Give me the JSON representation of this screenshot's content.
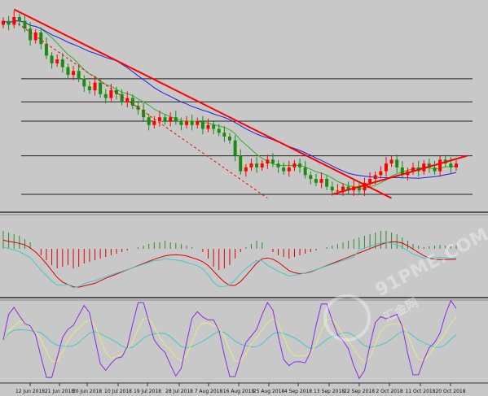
{
  "chart_data": {
    "type": "candlestick",
    "title": "",
    "x_tick_labels": [
      "12 Jun 2018",
      "21 Jun 2018",
      "30 Jun 2018",
      "10 Jul 2018",
      "19 Jul 2018",
      "28 Jul 2018",
      "7 Aug 2018",
      "16 Aug 2018",
      "25 Aug 2018",
      "4 Sep 2018",
      "13 Sep 2018",
      "22 Sep 2018",
      "2 Oct 2018",
      "11 Oct 2018",
      "20 Oct 2018"
    ],
    "price_panel": {
      "closes": [
        75,
        74,
        76,
        75,
        73,
        70,
        72,
        69,
        66,
        64,
        65,
        63,
        61,
        62,
        60,
        58,
        57,
        59,
        56,
        55,
        57,
        56,
        54,
        55,
        53,
        52,
        50,
        48,
        49,
        50,
        49,
        50,
        49,
        48,
        49,
        48,
        49,
        47,
        48,
        47,
        46,
        45,
        44,
        40,
        36,
        37,
        38,
        37,
        38,
        39,
        38,
        37,
        36,
        37,
        38,
        37,
        35,
        34,
        33,
        34,
        32,
        31,
        31,
        32,
        31,
        32,
        31,
        33,
        34,
        35,
        36,
        38,
        39,
        37,
        35,
        36,
        37,
        36,
        38,
        37,
        36,
        39,
        38,
        37,
        38
      ],
      "trendlines": [
        {
          "from": [
            2,
            78
          ],
          "to": [
            72,
            29
          ],
          "color": "#ff0000",
          "style": "solid"
        },
        {
          "from": [
            2,
            75
          ],
          "to": [
            49,
            29
          ],
          "color": "#ff0000",
          "style": "dashed"
        },
        {
          "from": [
            61,
            30
          ],
          "to": [
            86,
            40
          ],
          "color": "#ff0000",
          "style": "solid"
        }
      ],
      "horizontal_levels": [
        60,
        54,
        49,
        40,
        30
      ],
      "moving_averages": [
        {
          "color": "#e8e87a",
          "period": "fast"
        },
        {
          "color": "#2db52d",
          "period": "medium"
        },
        {
          "color": "#2222dd",
          "period": "slow"
        }
      ]
    },
    "macd_panel": {
      "histogram": [
        0.55,
        0.5,
        0.45,
        0.4,
        0.3,
        0.2,
        0.0,
        -0.2,
        -0.35,
        -0.5,
        -0.6,
        -0.55,
        -0.5,
        -0.6,
        -0.55,
        -0.45,
        -0.4,
        -0.35,
        -0.3,
        -0.25,
        -0.2,
        -0.15,
        -0.1,
        -0.05,
        0.0,
        0.05,
        0.1,
        0.15,
        0.2,
        0.2,
        0.25,
        0.2,
        0.18,
        0.15,
        0.1,
        0.05,
        0.0,
        -0.1,
        -0.3,
        -0.55,
        -0.65,
        -0.6,
        -0.5,
        -0.3,
        -0.1,
        0.05,
        0.15,
        0.25,
        0.2,
        0.0,
        -0.1,
        -0.2,
        -0.25,
        -0.3,
        -0.25,
        -0.2,
        -0.15,
        -0.1,
        -0.05,
        0.0,
        0.05,
        0.1,
        0.15,
        0.2,
        0.25,
        0.3,
        0.35,
        0.4,
        0.45,
        0.5,
        0.55,
        0.55,
        0.5,
        0.45,
        0.35,
        0.25,
        0.15,
        0.1,
        0.05,
        0.08,
        0.1,
        0.12,
        0.1,
        0.08,
        0.1
      ],
      "signal_color": "#e00000",
      "macd_line_color": "#40c8c8",
      "positive_bar_color": "#2e8b2e",
      "negative_bar_color": "#e00000"
    },
    "stochastic_panel": {
      "main_color": "#8a2be2",
      "signal_color": "#e8e87a",
      "third_color": "#40c8c8"
    },
    "grid": false
  },
  "watermark": {
    "text": "91PME.COM",
    "sub": "汇金网"
  }
}
